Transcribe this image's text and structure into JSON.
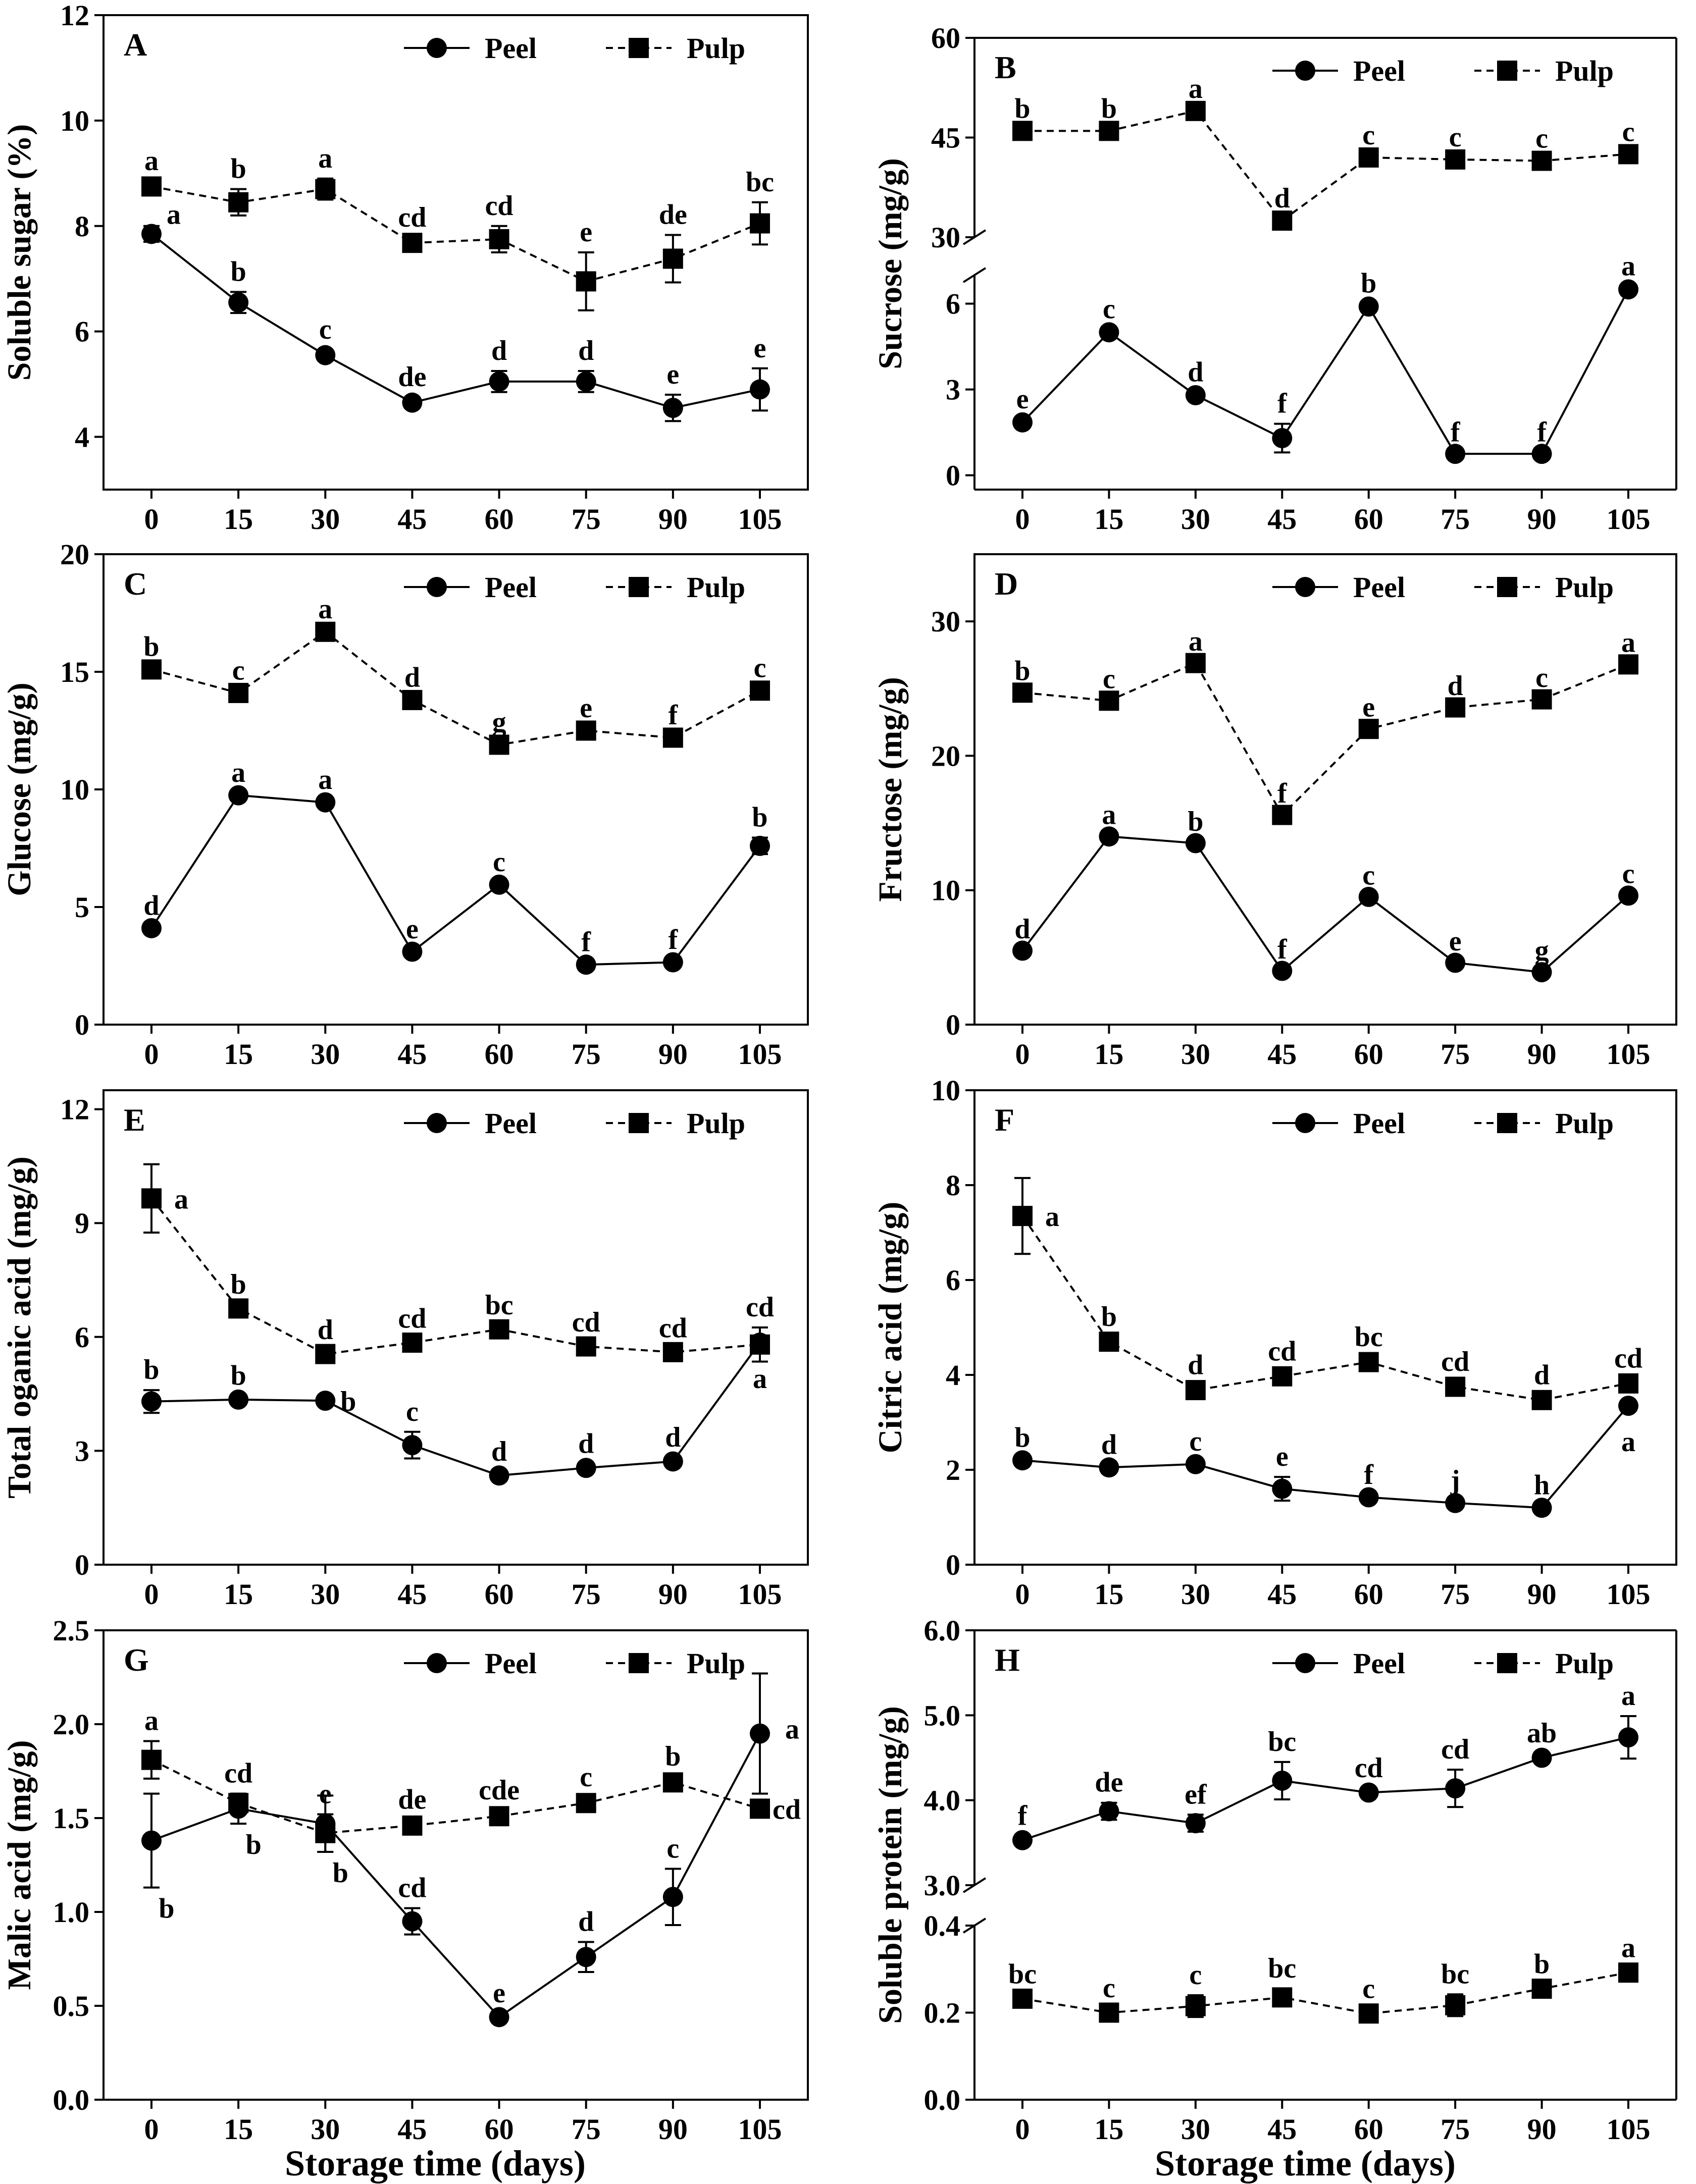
{
  "figure": {
    "x_title": "Storage time (days)",
    "series_names": [
      "Peel",
      "Pulp"
    ]
  },
  "chart_data": [
    {
      "id": "A",
      "type": "line",
      "title": "A",
      "xlabel": "Storage time (days)",
      "ylabel": "Soluble sugar (%)",
      "categories": [
        "0",
        "15",
        "30",
        "45",
        "60",
        "75",
        "90",
        "105"
      ],
      "ylim": [
        3,
        12
      ],
      "yticks": [
        4,
        6,
        8,
        10,
        12
      ],
      "broken": false,
      "legend_position": "top-right",
      "series": [
        {
          "name": "Peel",
          "marker": "circle",
          "dash": false,
          "values": [
            7.85,
            6.55,
            5.55,
            4.65,
            5.05,
            5.05,
            4.55,
            4.9
          ],
          "errors": [
            0.15,
            0.2,
            0.1,
            0.1,
            0.2,
            0.2,
            0.25,
            0.4
          ],
          "letters": [
            "a",
            "b",
            "c",
            "de",
            "d",
            "d",
            "e",
            "e"
          ]
        },
        {
          "name": "Pulp",
          "marker": "square",
          "dash": true,
          "values": [
            8.75,
            8.45,
            8.7,
            7.68,
            7.75,
            6.95,
            7.38,
            8.05
          ],
          "errors": [
            0.1,
            0.25,
            0.2,
            0.1,
            0.25,
            0.55,
            0.45,
            0.4
          ],
          "letters": [
            "a",
            "b",
            "a",
            "cd",
            "cd",
            "e",
            "de",
            "bc"
          ]
        }
      ]
    },
    {
      "id": "B",
      "type": "line",
      "title": "B",
      "xlabel": "Storage time (days)",
      "ylabel": "Sucrose (mg/g)",
      "categories": [
        "0",
        "15",
        "30",
        "45",
        "60",
        "75",
        "90",
        "105"
      ],
      "broken": true,
      "lower_ylim": [
        -0.5,
        7
      ],
      "lower_yticks": [
        0,
        3,
        6
      ],
      "upper_ylim": [
        30,
        60
      ],
      "upper_yticks": [
        30,
        45,
        60
      ],
      "legend_position": "top-right",
      "series": [
        {
          "name": "Peel",
          "marker": "circle",
          "dash": false,
          "values": [
            1.85,
            5.0,
            2.8,
            1.3,
            5.9,
            0.75,
            0.75,
            6.5
          ],
          "errors": [
            0.1,
            0.1,
            0.1,
            0.5,
            0.1,
            0.05,
            0.05,
            0.1
          ],
          "letters": [
            "e",
            "c",
            "d",
            "f",
            "b",
            "f",
            "f",
            "a"
          ]
        },
        {
          "name": "Pulp",
          "marker": "square",
          "dash": true,
          "values": [
            46.0,
            46.0,
            49.0,
            32.5,
            42.0,
            41.7,
            41.5,
            42.5
          ],
          "errors": [
            0.3,
            0.3,
            0.3,
            0.3,
            0.3,
            0.3,
            0.3,
            0.3
          ],
          "letters": [
            "b",
            "b",
            "a",
            "d",
            "c",
            "c",
            "c",
            "c"
          ]
        }
      ]
    },
    {
      "id": "C",
      "type": "line",
      "title": "C",
      "xlabel": "Storage time (days)",
      "ylabel": "Glucose (mg/g)",
      "categories": [
        "0",
        "15",
        "30",
        "45",
        "60",
        "75",
        "90",
        "105"
      ],
      "ylim": [
        0,
        20
      ],
      "yticks": [
        0,
        5,
        10,
        15,
        20
      ],
      "broken": false,
      "legend_position": "top-right",
      "series": [
        {
          "name": "Peel",
          "marker": "circle",
          "dash": false,
          "values": [
            4.1,
            9.75,
            9.45,
            3.1,
            5.95,
            2.55,
            2.65,
            7.6
          ],
          "errors": [
            0.1,
            0.1,
            0.1,
            0.1,
            0.1,
            0.1,
            0.1,
            0.35
          ],
          "letters": [
            "d",
            "a",
            "a",
            "e",
            "c",
            "f",
            "f",
            "b"
          ]
        },
        {
          "name": "Pulp",
          "marker": "square",
          "dash": true,
          "values": [
            15.1,
            14.1,
            16.7,
            13.8,
            11.9,
            12.5,
            12.2,
            14.2
          ],
          "errors": [
            0.1,
            0.1,
            0.1,
            0.1,
            0.1,
            0.1,
            0.1,
            0.1
          ],
          "letters": [
            "b",
            "c",
            "a",
            "d",
            "g",
            "e",
            "f",
            "c"
          ]
        }
      ]
    },
    {
      "id": "D",
      "type": "line",
      "title": "D",
      "xlabel": "Storage time (days)",
      "ylabel": "Fructose (mg/g)",
      "categories": [
        "0",
        "15",
        "30",
        "45",
        "60",
        "75",
        "90",
        "105"
      ],
      "ylim": [
        0,
        35
      ],
      "yticks": [
        0,
        10,
        20,
        30
      ],
      "broken": false,
      "legend_position": "top-right",
      "series": [
        {
          "name": "Peel",
          "marker": "circle",
          "dash": false,
          "values": [
            5.5,
            14.0,
            13.5,
            4.0,
            9.5,
            4.6,
            3.9,
            9.6
          ],
          "errors": [
            0.1,
            0.1,
            0.1,
            0.1,
            0.1,
            0.1,
            0.1,
            0.1
          ],
          "letters": [
            "d",
            "a",
            "b",
            "f",
            "c",
            "e",
            "g",
            "c"
          ]
        },
        {
          "name": "Pulp",
          "marker": "square",
          "dash": true,
          "values": [
            24.7,
            24.1,
            26.9,
            15.6,
            22.0,
            23.6,
            24.2,
            26.8
          ],
          "errors": [
            0.1,
            0.1,
            0.1,
            0.1,
            0.1,
            0.1,
            0.1,
            0.1
          ],
          "letters": [
            "b",
            "c",
            "a",
            "f",
            "e",
            "d",
            "c",
            "a"
          ]
        }
      ]
    },
    {
      "id": "E",
      "type": "line",
      "title": "E",
      "xlabel": "Storage time (days)",
      "ylabel": "Total oganic acid (mg/g)",
      "categories": [
        "0",
        "15",
        "30",
        "45",
        "60",
        "75",
        "90",
        "105"
      ],
      "ylim": [
        0,
        12.5
      ],
      "yticks": [
        0,
        3,
        6,
        9,
        12
      ],
      "broken": false,
      "legend_position": "top-right",
      "series": [
        {
          "name": "Peel",
          "marker": "circle",
          "dash": false,
          "values": [
            4.3,
            4.35,
            4.32,
            3.15,
            2.35,
            2.55,
            2.72,
            5.85
          ],
          "errors": [
            0.3,
            0.1,
            0.1,
            0.35,
            0.1,
            0.1,
            0.1,
            0.1
          ],
          "letters": [
            "b",
            "b",
            "b",
            "c",
            "d",
            "d",
            "d",
            "a"
          ]
        },
        {
          "name": "Pulp",
          "marker": "square",
          "dash": true,
          "values": [
            9.65,
            6.75,
            5.55,
            5.85,
            6.2,
            5.75,
            5.6,
            5.8
          ],
          "errors": [
            0.9,
            0.1,
            0.1,
            0.1,
            0.1,
            0.1,
            0.1,
            0.45
          ],
          "letters": [
            "a",
            "b",
            "d",
            "cd",
            "bc",
            "cd",
            "cd",
            "cd"
          ]
        }
      ]
    },
    {
      "id": "F",
      "type": "line",
      "title": "F",
      "xlabel": "Storage time (days)",
      "ylabel": "Citric acid (mg/g)",
      "categories": [
        "0",
        "15",
        "30",
        "45",
        "60",
        "75",
        "90",
        "105"
      ],
      "ylim": [
        0,
        10
      ],
      "yticks": [
        0,
        2,
        4,
        6,
        8,
        10
      ],
      "broken": false,
      "legend_position": "top-right",
      "series": [
        {
          "name": "Peel",
          "marker": "circle",
          "dash": false,
          "values": [
            2.2,
            2.05,
            2.12,
            1.6,
            1.42,
            1.3,
            1.2,
            3.35
          ],
          "errors": [
            0.05,
            0.05,
            0.05,
            0.25,
            0.05,
            0.05,
            0.05,
            0.1
          ],
          "letters": [
            "b",
            "d",
            "c",
            "e",
            "f",
            "j",
            "h",
            "a"
          ]
        },
        {
          "name": "Pulp",
          "marker": "square",
          "dash": true,
          "values": [
            7.35,
            4.7,
            3.68,
            3.97,
            4.27,
            3.75,
            3.47,
            3.82
          ],
          "errors": [
            0.8,
            0.1,
            0.1,
            0.1,
            0.1,
            0.1,
            0.1,
            0.1
          ],
          "letters": [
            "a",
            "b",
            "d",
            "cd",
            "bc",
            "cd",
            "d",
            "cd"
          ]
        }
      ]
    },
    {
      "id": "G",
      "type": "line",
      "title": "G",
      "xlabel": "Storage time (days)",
      "ylabel": "Malic acid (mg/g)",
      "categories": [
        "0",
        "15",
        "30",
        "45",
        "60",
        "75",
        "90",
        "105"
      ],
      "ylim": [
        0,
        2.5
      ],
      "yticks": [
        0.0,
        0.5,
        1.0,
        1.5,
        2.0,
        2.5
      ],
      "broken": false,
      "legend_position": "top-right",
      "series": [
        {
          "name": "Peel",
          "marker": "circle",
          "dash": false,
          "values": [
            1.38,
            1.55,
            1.47,
            0.95,
            0.44,
            0.76,
            1.08,
            1.95
          ],
          "errors": [
            0.25,
            0.08,
            0.15,
            0.07,
            0.02,
            0.08,
            0.15,
            0.32
          ],
          "letters": [
            "b",
            "b",
            "b",
            "cd",
            "e",
            "d",
            "c",
            "a"
          ]
        },
        {
          "name": "Pulp",
          "marker": "square",
          "dash": true,
          "values": [
            1.81,
            1.58,
            1.42,
            1.46,
            1.51,
            1.58,
            1.69,
            1.55
          ],
          "errors": [
            0.1,
            0.05,
            0.1,
            0.03,
            0.03,
            0.03,
            0.03,
            0.03
          ],
          "letters": [
            "a",
            "cd",
            "e",
            "de",
            "cde",
            "c",
            "b",
            "cd"
          ]
        }
      ]
    },
    {
      "id": "H",
      "type": "line",
      "title": "H",
      "xlabel": "Storage time (days)",
      "ylabel": "Soluble protein (mg/g)",
      "categories": [
        "0",
        "15",
        "30",
        "45",
        "60",
        "75",
        "90",
        "105"
      ],
      "broken": true,
      "lower_ylim": [
        0,
        0.4
      ],
      "lower_yticks": [
        0.0,
        0.2,
        0.4
      ],
      "upper_ylim": [
        3.0,
        6.0
      ],
      "upper_yticks": [
        3.0,
        4.0,
        5.0,
        6.0
      ],
      "legend_position": "top-right",
      "series": [
        {
          "name": "Peel",
          "marker": "circle",
          "dash": false,
          "values": [
            3.53,
            3.87,
            3.73,
            4.23,
            4.09,
            4.14,
            4.5,
            4.74
          ],
          "errors": [
            0.05,
            0.1,
            0.1,
            0.22,
            0.05,
            0.22,
            0.05,
            0.25
          ],
          "letters": [
            "f",
            "de",
            "ef",
            "bc",
            "cd",
            "cd",
            "ab",
            "a"
          ]
        },
        {
          "name": "Pulp",
          "marker": "square",
          "dash": true,
          "values": [
            0.232,
            0.2,
            0.215,
            0.235,
            0.198,
            0.217,
            0.255,
            0.292
          ],
          "errors": [
            0.01,
            0.01,
            0.025,
            0.02,
            0.01,
            0.025,
            0.01,
            0.01
          ],
          "letters": [
            "bc",
            "c",
            "c",
            "bc",
            "c",
            "bc",
            "b",
            "a"
          ]
        }
      ]
    }
  ]
}
